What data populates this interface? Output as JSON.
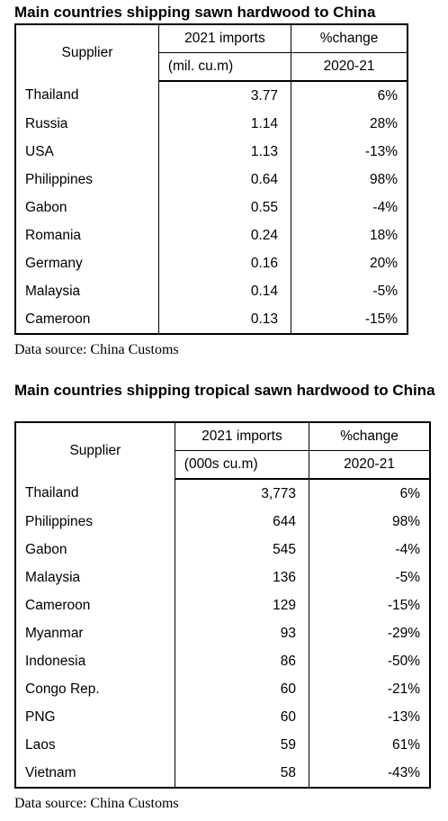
{
  "tables": [
    {
      "title": "Main countries shipping sawn hardwood to China",
      "header": {
        "supplier": "Supplier",
        "col2_top": "2021 imports",
        "col2_unit": "(mil. cu.m)",
        "col3_top": "%change",
        "col3_unit": "2020-21"
      },
      "rows": [
        {
          "supplier": "Thailand",
          "imports": "3.77",
          "change": "6%"
        },
        {
          "supplier": "Russia",
          "imports": "1.14",
          "change": "28%"
        },
        {
          "supplier": "USA",
          "imports": "1.13",
          "change": "-13%"
        },
        {
          "supplier": "Philippines",
          "imports": "0.64",
          "change": "98%"
        },
        {
          "supplier": "Gabon",
          "imports": "0.55",
          "change": "-4%"
        },
        {
          "supplier": "Romania",
          "imports": "0.24",
          "change": "18%"
        },
        {
          "supplier": "Germany",
          "imports": "0.16",
          "change": "20%"
        },
        {
          "supplier": "Malaysia",
          "imports": "0.14",
          "change": "-5%"
        },
        {
          "supplier": "Cameroon",
          "imports": "0.13",
          "change": "-15%"
        }
      ],
      "source": "Data source: China Customs"
    },
    {
      "title": "Main countries shipping tropical sawn hardwood to China",
      "header": {
        "supplier": "Supplier",
        "col2_top": "2021 imports",
        "col2_unit": "(000s cu.m)",
        "col3_top": "%change",
        "col3_unit": "2020-21"
      },
      "rows": [
        {
          "supplier": "Thailand",
          "imports": "3,773",
          "change": "6%"
        },
        {
          "supplier": "Philippines",
          "imports": "644",
          "change": "98%"
        },
        {
          "supplier": "Gabon",
          "imports": "545",
          "change": "-4%"
        },
        {
          "supplier": "Malaysia",
          "imports": "136",
          "change": "-5%"
        },
        {
          "supplier": "Cameroon",
          "imports": "129",
          "change": "-15%"
        },
        {
          "supplier": "Myanmar",
          "imports": "93",
          "change": "-29%"
        },
        {
          "supplier": "Indonesia",
          "imports": "86",
          "change": "-50%"
        },
        {
          "supplier": "Congo Rep.",
          "imports": "60",
          "change": "-21%"
        },
        {
          "supplier": "PNG",
          "imports": "60",
          "change": "-13%"
        },
        {
          "supplier": "Laos",
          "imports": "59",
          "change": "61%"
        },
        {
          "supplier": "Vietnam",
          "imports": "58",
          "change": "-43%"
        }
      ],
      "source": "Data source: China Customs"
    }
  ]
}
